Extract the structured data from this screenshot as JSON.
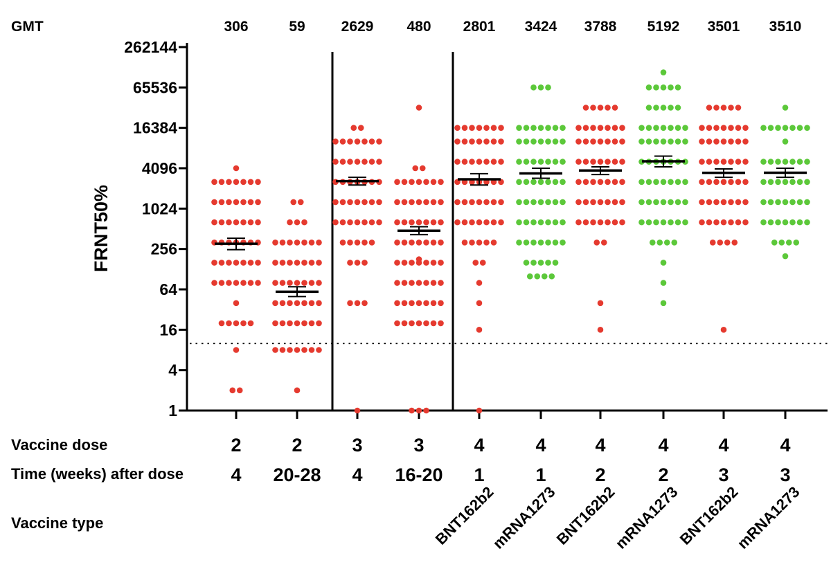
{
  "chart_data": {
    "type": "scatter",
    "ylabel": "FRNT50%",
    "y_scale": "log2",
    "ylim": [
      1,
      262144
    ],
    "yticks": [
      "262144",
      "65536",
      "16384",
      "4096",
      "1024",
      "256",
      "64",
      "16",
      "4",
      "1"
    ],
    "ytick_values": [
      262144,
      65536,
      16384,
      4096,
      1024,
      256,
      64,
      16,
      4,
      1
    ],
    "limit_of_detection": 10,
    "gmt_label": "GMT",
    "row_labels": {
      "dose": "Vaccine dose",
      "time": "Time (weeks) after dose",
      "type": "Vaccine type"
    },
    "colors": {
      "BNT162b2": "#e53a2f",
      "mRNA1273": "#5cc83a",
      "mean": "#000000"
    },
    "groups": [
      {
        "gmt": "306",
        "dose": "2",
        "time": "4",
        "type": "",
        "color": "#e53a2f",
        "mean": 306,
        "ci": [
          250,
          370
        ],
        "values": [
          4096,
          2560,
          2560,
          2560,
          2560,
          2560,
          2560,
          2560,
          1280,
          1280,
          1280,
          1280,
          1280,
          1280,
          1280,
          640,
          640,
          640,
          640,
          640,
          640,
          640,
          320,
          320,
          320,
          320,
          320,
          320,
          320,
          160,
          160,
          160,
          160,
          160,
          160,
          160,
          80,
          80,
          80,
          80,
          80,
          80,
          80,
          40,
          20,
          20,
          20,
          20,
          20,
          8,
          2,
          2
        ]
      },
      {
        "gmt": "59",
        "dose": "2",
        "time": "20-28",
        "type": "",
        "color": "#e53a2f",
        "mean": 59,
        "ci": [
          50,
          70
        ],
        "values": [
          1280,
          1280,
          640,
          640,
          640,
          320,
          320,
          320,
          320,
          320,
          320,
          320,
          160,
          160,
          160,
          160,
          160,
          160,
          160,
          80,
          80,
          80,
          80,
          80,
          80,
          80,
          40,
          40,
          40,
          40,
          40,
          40,
          40,
          20,
          20,
          20,
          20,
          20,
          20,
          20,
          8,
          8,
          8,
          8,
          8,
          8,
          8,
          2
        ]
      },
      {
        "gmt": "2629",
        "dose": "3",
        "time": "4",
        "type": "",
        "color": "#e53a2f",
        "mean": 2629,
        "ci": [
          2300,
          3000
        ],
        "values": [
          16384,
          16384,
          10240,
          10240,
          10240,
          10240,
          10240,
          10240,
          10240,
          5120,
          5120,
          5120,
          5120,
          5120,
          5120,
          5120,
          2560,
          2560,
          2560,
          2560,
          2560,
          2560,
          2560,
          1280,
          1280,
          1280,
          1280,
          1280,
          1280,
          1280,
          640,
          640,
          640,
          640,
          640,
          640,
          640,
          320,
          320,
          320,
          320,
          320,
          160,
          160,
          160,
          40,
          40,
          40,
          1
        ]
      },
      {
        "gmt": "480",
        "dose": "3",
        "time": "16-20",
        "type": "",
        "color": "#e53a2f",
        "mean": 480,
        "ci": [
          420,
          550
        ],
        "values": [
          32768,
          4096,
          4096,
          2560,
          2560,
          2560,
          2560,
          2560,
          2560,
          2560,
          1280,
          1280,
          1280,
          1280,
          1280,
          1280,
          1280,
          640,
          640,
          640,
          640,
          640,
          640,
          640,
          320,
          320,
          320,
          320,
          320,
          320,
          320,
          180,
          160,
          160,
          160,
          160,
          160,
          160,
          160,
          80,
          80,
          80,
          80,
          80,
          80,
          80,
          40,
          40,
          40,
          40,
          40,
          40,
          40,
          20,
          20,
          20,
          20,
          20,
          20,
          20,
          1,
          1,
          1
        ]
      },
      {
        "gmt": "2801",
        "dose": "4",
        "time": "1",
        "type": "BNT162b2",
        "color": "#e53a2f",
        "mean": 2801,
        "ci": [
          2300,
          3400
        ],
        "values": [
          16384,
          16384,
          16384,
          16384,
          16384,
          16384,
          16384,
          10240,
          10240,
          10240,
          10240,
          10240,
          10240,
          10240,
          5120,
          5120,
          5120,
          5120,
          5120,
          5120,
          5120,
          2560,
          2560,
          2560,
          2560,
          2560,
          2560,
          2560,
          1280,
          1280,
          1280,
          1280,
          1280,
          1280,
          1280,
          640,
          640,
          640,
          640,
          640,
          640,
          640,
          320,
          320,
          320,
          320,
          320,
          160,
          160,
          80,
          40,
          16,
          1
        ]
      },
      {
        "gmt": "3424",
        "dose": "4",
        "time": "1",
        "type": "mRNA1273",
        "color": "#5cc83a",
        "mean": 3424,
        "ci": [
          2900,
          4100
        ],
        "values": [
          65536,
          65536,
          65536,
          16384,
          16384,
          16384,
          16384,
          16384,
          16384,
          16384,
          10240,
          10240,
          10240,
          10240,
          10240,
          10240,
          10240,
          5120,
          5120,
          5120,
          5120,
          5120,
          5120,
          5120,
          2560,
          2560,
          2560,
          2560,
          2560,
          2560,
          2560,
          1280,
          1280,
          1280,
          1280,
          1280,
          1280,
          1280,
          640,
          640,
          640,
          640,
          640,
          640,
          640,
          320,
          320,
          320,
          320,
          320,
          320,
          320,
          160,
          160,
          160,
          160,
          160,
          100,
          100,
          100,
          100
        ]
      },
      {
        "gmt": "3788",
        "dose": "4",
        "time": "2",
        "type": "BNT162b2",
        "color": "#e53a2f",
        "mean": 3788,
        "ci": [
          3300,
          4300
        ],
        "values": [
          32768,
          32768,
          32768,
          32768,
          32768,
          16384,
          16384,
          16384,
          16384,
          16384,
          16384,
          16384,
          10240,
          10240,
          10240,
          10240,
          10240,
          10240,
          10240,
          5120,
          5120,
          5120,
          5120,
          5120,
          5120,
          5120,
          2560,
          2560,
          2560,
          2560,
          2560,
          2560,
          2560,
          1280,
          1280,
          1280,
          1280,
          1280,
          1280,
          1280,
          640,
          640,
          640,
          640,
          640,
          640,
          640,
          320,
          320,
          40,
          16
        ]
      },
      {
        "gmt": "5192",
        "dose": "4",
        "time": "2",
        "type": "mRNA1273",
        "color": "#5cc83a",
        "mean": 5192,
        "ci": [
          4300,
          6200
        ],
        "values": [
          110000,
          65536,
          65536,
          65536,
          65536,
          65536,
          32768,
          32768,
          32768,
          32768,
          32768,
          16384,
          16384,
          16384,
          16384,
          16384,
          16384,
          16384,
          10240,
          10240,
          10240,
          10240,
          10240,
          10240,
          10240,
          5120,
          5120,
          5120,
          5120,
          5120,
          5120,
          5120,
          2560,
          2560,
          2560,
          2560,
          2560,
          2560,
          2560,
          1280,
          1280,
          1280,
          1280,
          1280,
          1280,
          1280,
          640,
          640,
          640,
          640,
          640,
          640,
          640,
          320,
          320,
          320,
          320,
          160,
          80,
          40
        ]
      },
      {
        "gmt": "3501",
        "dose": "4",
        "time": "3",
        "type": "BNT162b2",
        "color": "#e53a2f",
        "mean": 3501,
        "ci": [
          3000,
          4000
        ],
        "values": [
          32768,
          32768,
          32768,
          32768,
          32768,
          16384,
          16384,
          16384,
          16384,
          16384,
          16384,
          16384,
          10240,
          10240,
          10240,
          10240,
          10240,
          10240,
          10240,
          5120,
          5120,
          5120,
          5120,
          5120,
          5120,
          5120,
          2560,
          2560,
          2560,
          2560,
          2560,
          2560,
          2560,
          1280,
          1280,
          1280,
          1280,
          1280,
          1280,
          1280,
          640,
          640,
          640,
          640,
          640,
          640,
          640,
          320,
          320,
          320,
          320,
          16
        ]
      },
      {
        "gmt": "3510",
        "dose": "4",
        "time": "3",
        "type": "mRNA1273",
        "color": "#5cc83a",
        "mean": 3510,
        "ci": [
          3000,
          4100
        ],
        "values": [
          32768,
          16384,
          16384,
          16384,
          16384,
          16384,
          16384,
          16384,
          10240,
          5120,
          5120,
          5120,
          5120,
          5120,
          5120,
          5120,
          2560,
          2560,
          2560,
          2560,
          2560,
          2560,
          2560,
          1280,
          1280,
          1280,
          1280,
          1280,
          1280,
          1280,
          640,
          640,
          640,
          640,
          640,
          640,
          640,
          320,
          320,
          320,
          320,
          200
        ]
      }
    ]
  }
}
